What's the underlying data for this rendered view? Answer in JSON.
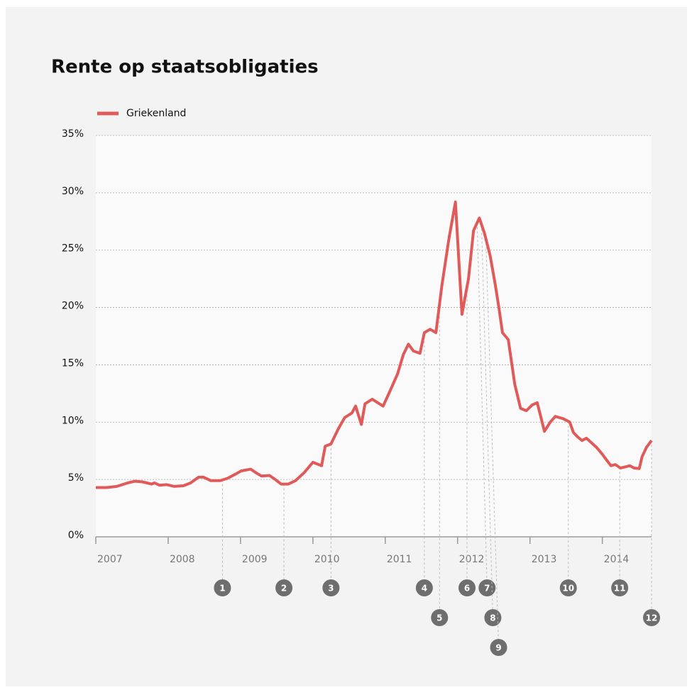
{
  "chart_data": {
    "type": "line",
    "title": "Rente op staatsobligaties",
    "x": [
      2007.0,
      2007.15,
      2007.29,
      2007.44,
      2007.54,
      2007.64,
      2007.77,
      2007.81,
      2007.88,
      2007.98,
      2008.08,
      2008.21,
      2008.31,
      2008.42,
      2008.49,
      2008.59,
      2008.72,
      2008.82,
      2008.94,
      2009.01,
      2009.14,
      2009.21,
      2009.29,
      2009.4,
      2009.48,
      2009.56,
      2009.66,
      2009.76,
      2009.88,
      2010.0,
      2010.12,
      2010.17,
      2010.25,
      2010.35,
      2010.44,
      2010.54,
      2010.59,
      2010.67,
      2010.72,
      2010.82,
      2010.97,
      2011.05,
      2011.17,
      2011.25,
      2011.32,
      2011.39,
      2011.48,
      2011.54,
      2011.62,
      2011.7,
      2011.78,
      2011.88,
      2011.97,
      2012.06,
      2012.15,
      2012.22,
      2012.3,
      2012.37,
      2012.45,
      2012.52,
      2012.57,
      2012.62,
      2012.7,
      2012.79,
      2012.87,
      2012.95,
      2013.03,
      2013.1,
      2013.2,
      2013.28,
      2013.35,
      2013.46,
      2013.55,
      2013.6,
      2013.66,
      2013.72,
      2013.78,
      2013.85,
      2013.92,
      2014.0,
      2014.07,
      2014.12,
      2014.18,
      2014.25,
      2014.32,
      2014.38,
      2014.44,
      2014.51,
      2014.55,
      2014.61,
      2014.68
    ],
    "series": [
      {
        "name": "Griekenland",
        "color": "#e05a5a",
        "values": [
          4.3,
          4.3,
          4.4,
          4.7,
          4.85,
          4.8,
          4.6,
          4.7,
          4.5,
          4.55,
          4.4,
          4.45,
          4.7,
          5.2,
          5.2,
          4.9,
          4.9,
          5.1,
          5.5,
          5.75,
          5.9,
          5.6,
          5.3,
          5.35,
          5.0,
          4.6,
          4.6,
          4.9,
          5.6,
          6.5,
          6.2,
          7.9,
          8.1,
          9.4,
          10.4,
          10.8,
          11.4,
          9.8,
          11.6,
          12.0,
          11.4,
          12.5,
          14.2,
          15.9,
          16.8,
          16.2,
          16.0,
          17.8,
          18.1,
          17.8,
          21.8,
          26.0,
          29.2,
          19.4,
          22.5,
          26.7,
          27.8,
          26.5,
          24.5,
          22.0,
          20.0,
          17.8,
          17.2,
          13.3,
          11.2,
          11.0,
          11.5,
          11.7,
          9.2,
          10.0,
          10.5,
          10.3,
          10.0,
          9.1,
          8.7,
          8.4,
          8.6,
          8.2,
          7.8,
          7.2,
          6.6,
          6.2,
          6.3,
          6.0,
          6.1,
          6.2,
          6.0,
          5.95,
          7.0,
          7.8,
          8.4
        ]
      }
    ],
    "xlim": [
      2007,
      2014.68
    ],
    "xticks": [
      2007,
      2008,
      2009,
      2010,
      2011,
      2012,
      2013,
      2014
    ],
    "ylim": [
      0,
      35
    ],
    "yticks": [
      {
        "value": 0,
        "label": "0%"
      },
      {
        "value": 5,
        "label": "5%"
      },
      {
        "value": 10,
        "label": "10%"
      },
      {
        "value": 15,
        "label": "15%"
      },
      {
        "value": 20,
        "label": "20%"
      },
      {
        "value": 25,
        "label": "25%"
      },
      {
        "value": 30,
        "label": "30%"
      },
      {
        "value": 35,
        "label": "35%"
      }
    ],
    "grid": true,
    "annotations": [
      {
        "label": "1",
        "x": 2008.75
      },
      {
        "label": "2",
        "x": 2009.6
      },
      {
        "label": "3",
        "x": 2010.25
      },
      {
        "label": "4",
        "x": 2011.54
      },
      {
        "label": "5",
        "x": 2011.75
      },
      {
        "label": "6",
        "x": 2012.13
      },
      {
        "label": "7",
        "x": 2012.27
      },
      {
        "label": "8",
        "x": 2012.33
      },
      {
        "label": "9",
        "x": 2012.39
      },
      {
        "label": "10",
        "x": 2013.53
      },
      {
        "label": "11",
        "x": 2014.24
      },
      {
        "label": "12",
        "x": 2014.68
      }
    ]
  }
}
